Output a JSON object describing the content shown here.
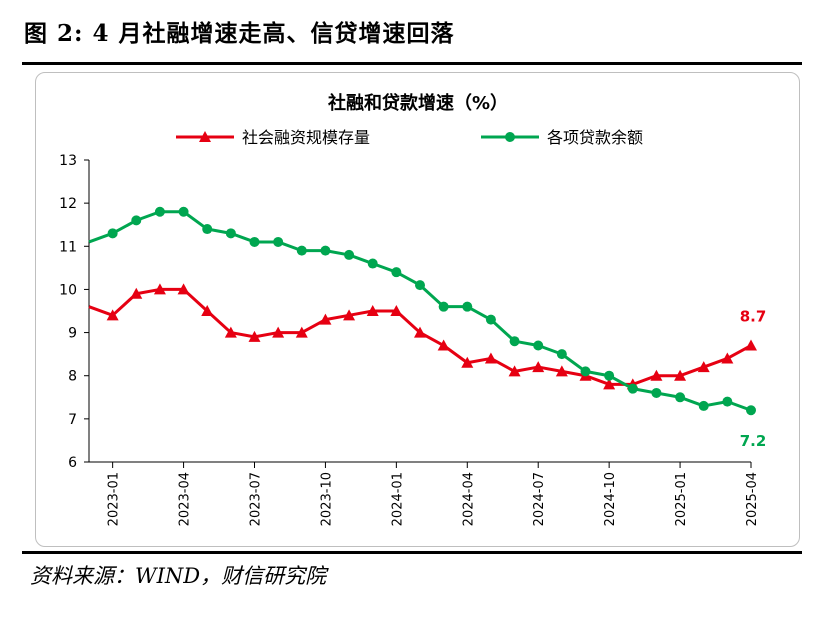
{
  "figure": {
    "label": "图 2:",
    "title": "4 月社融增速走高、信贷增速回落"
  },
  "source": "资料来源：WIND，财信研究院",
  "colors": {
    "series_red": "#e60012",
    "series_green": "#00a650"
  },
  "chart_data": {
    "type": "line",
    "title": "社融和贷款增速（%）",
    "xlabel": "",
    "ylabel": "",
    "ylim": [
      6,
      13
    ],
    "yticks": [
      6,
      7,
      8,
      9,
      10,
      11,
      12,
      13
    ],
    "xtick_labels": [
      "2023-01",
      "2023-04",
      "2023-07",
      "2023-10",
      "2024-01",
      "2024-04",
      "2024-07",
      "2024-10",
      "2025-01",
      "2025-04"
    ],
    "x": [
      "2022-12",
      "2023-01",
      "2023-02",
      "2023-03",
      "2023-04",
      "2023-05",
      "2023-06",
      "2023-07",
      "2023-08",
      "2023-09",
      "2023-10",
      "2023-11",
      "2023-12",
      "2024-01",
      "2024-02",
      "2024-03",
      "2024-04",
      "2024-05",
      "2024-06",
      "2024-07",
      "2024-08",
      "2024-09",
      "2024-10",
      "2024-11",
      "2024-12",
      "2025-01",
      "2025-02",
      "2025-03",
      "2025-04"
    ],
    "legend_position": "top",
    "series": [
      {
        "name": "社会融资规模存量",
        "color": "#e60012",
        "marker": "triangle",
        "values": [
          9.6,
          9.4,
          9.9,
          10.0,
          10.0,
          9.5,
          9.0,
          8.9,
          9.0,
          9.0,
          9.3,
          9.4,
          9.5,
          9.5,
          9.0,
          8.7,
          8.3,
          8.4,
          8.1,
          8.2,
          8.1,
          8.0,
          7.8,
          7.8,
          8.0,
          8.0,
          8.2,
          8.4,
          8.7
        ],
        "end_label": "8.7"
      },
      {
        "name": "各项贷款余额",
        "color": "#00a650",
        "marker": "circle",
        "values": [
          11.1,
          11.3,
          11.6,
          11.8,
          11.8,
          11.4,
          11.3,
          11.1,
          11.1,
          10.9,
          10.9,
          10.8,
          10.6,
          10.4,
          10.1,
          9.6,
          9.6,
          9.3,
          8.8,
          8.7,
          8.5,
          8.1,
          8.0,
          7.7,
          7.6,
          7.5,
          7.3,
          7.4,
          7.2
        ],
        "end_label": "7.2"
      }
    ]
  }
}
